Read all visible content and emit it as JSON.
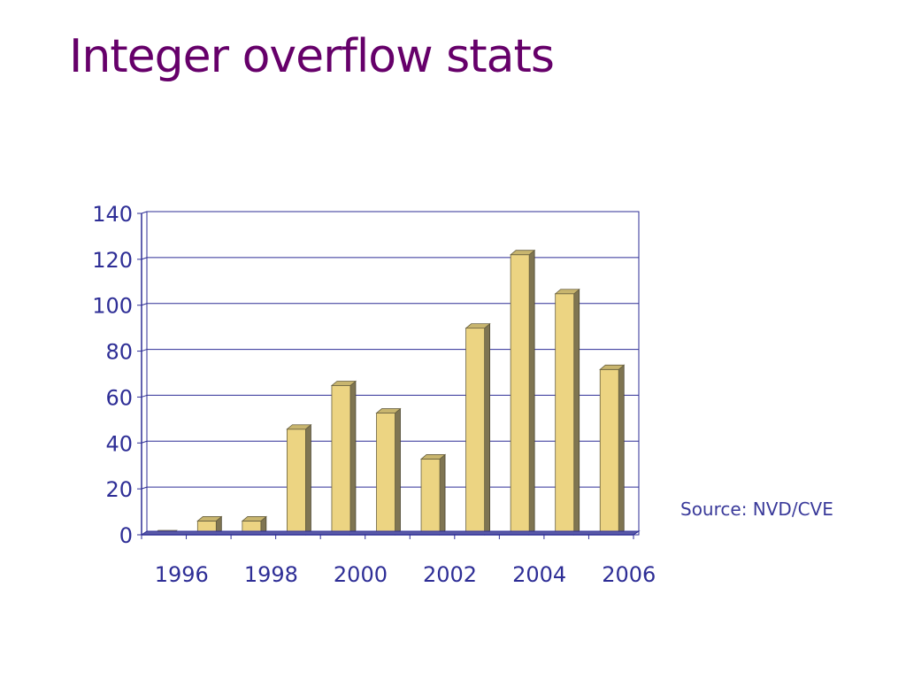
{
  "slide": {
    "title": "Integer overflow stats",
    "source": "Source:  NVD/CVE"
  },
  "colors": {
    "title": "#66006a",
    "axis": "#2e2e96",
    "bar_front": "#ecd482",
    "bar_side": "#7f7552",
    "bar_top": "#c8b56e",
    "grid": "#2e2e96"
  },
  "chart_data": {
    "type": "bar",
    "categories": [
      "1996",
      "1997",
      "1998",
      "1999",
      "2000",
      "2001",
      "2002",
      "2003",
      "2004",
      "2005",
      "2006"
    ],
    "tick_labels": [
      "1996",
      "1998",
      "2000",
      "2002",
      "2004",
      "2006"
    ],
    "values": [
      0,
      6,
      6,
      46,
      65,
      53,
      33,
      90,
      122,
      105,
      72
    ],
    "y_ticks": [
      0,
      20,
      40,
      60,
      80,
      100,
      120,
      140
    ],
    "ylim": [
      0,
      140
    ],
    "grid": true,
    "legend": "none",
    "title": "",
    "xlabel": "",
    "ylabel": ""
  }
}
